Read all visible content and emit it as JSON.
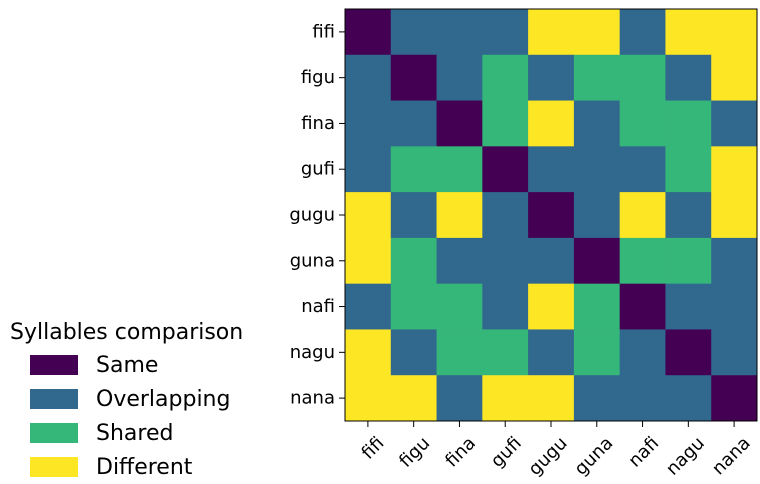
{
  "chart_data": {
    "type": "heatmap",
    "x_labels": [
      "fifi",
      "figu",
      "fina",
      "gufi",
      "gugu",
      "guna",
      "nafi",
      "nagu",
      "nana"
    ],
    "y_labels": [
      "fifi",
      "figu",
      "fina",
      "gufi",
      "gugu",
      "guna",
      "nafi",
      "nagu",
      "nana"
    ],
    "categories": [
      "Same",
      "Overlapping",
      "Shared",
      "Different"
    ],
    "colors": [
      "#440154",
      "#31688e",
      "#35b779",
      "#fde725"
    ],
    "matrix": [
      [
        0,
        1,
        1,
        1,
        3,
        3,
        1,
        3,
        3
      ],
      [
        1,
        0,
        1,
        2,
        1,
        2,
        2,
        1,
        3
      ],
      [
        1,
        1,
        0,
        2,
        3,
        1,
        2,
        2,
        1
      ],
      [
        1,
        2,
        2,
        0,
        1,
        1,
        1,
        2,
        3
      ],
      [
        3,
        1,
        3,
        1,
        0,
        1,
        3,
        1,
        3
      ],
      [
        3,
        2,
        1,
        1,
        1,
        0,
        2,
        2,
        1
      ],
      [
        1,
        2,
        2,
        1,
        3,
        2,
        0,
        1,
        1
      ],
      [
        3,
        1,
        2,
        2,
        1,
        2,
        1,
        0,
        1
      ],
      [
        3,
        3,
        1,
        3,
        3,
        1,
        1,
        1,
        0
      ]
    ],
    "legend": {
      "title": "Syllables comparison",
      "placement": "lower-left",
      "items": [
        "Same",
        "Overlapping",
        "Shared",
        "Different"
      ]
    },
    "grid": false
  }
}
